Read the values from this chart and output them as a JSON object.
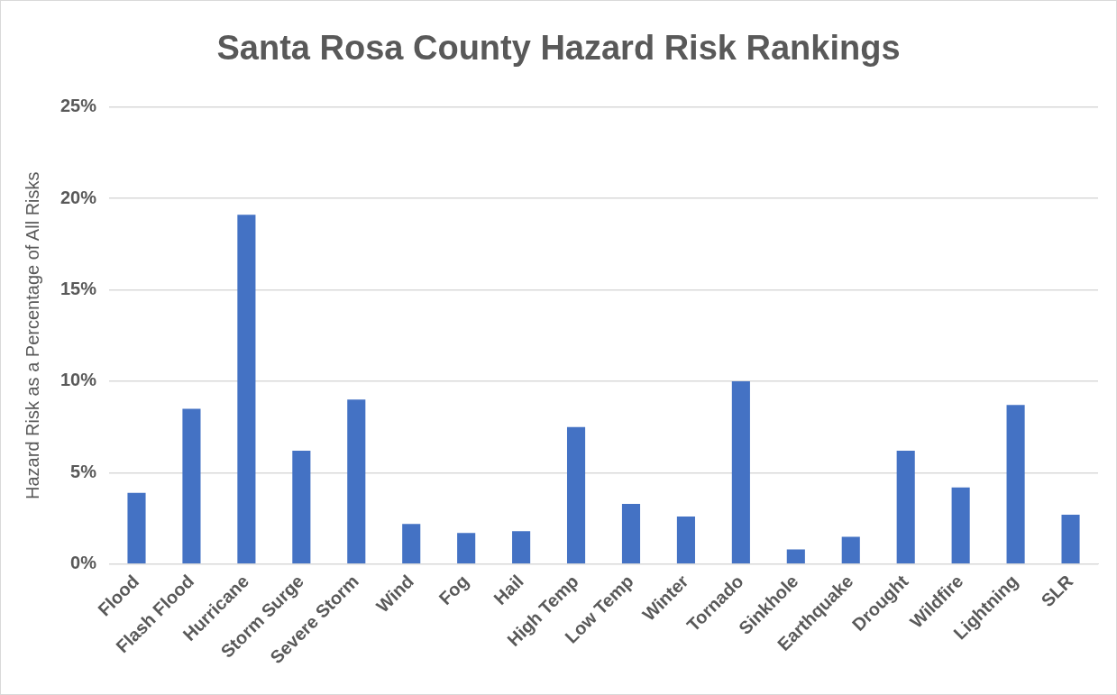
{
  "chart_data": {
    "type": "bar",
    "title": "Santa Rosa County Hazard Risk Rankings",
    "ylabel": "Hazard Risk as a Percentage of All Risks",
    "categories": [
      "Flood",
      "Flash Flood",
      "Hurricane",
      "Storm Surge",
      "Severe Storm",
      "Wind",
      "Fog",
      "Hail",
      "High Temp",
      "Low Temp",
      "Winter",
      "Tornado",
      "Sinkhole",
      "Earthquake",
      "Drought",
      "Wildfire",
      "Lightning",
      "SLR"
    ],
    "values": [
      3.9,
      8.5,
      19.1,
      6.2,
      9.0,
      2.2,
      1.7,
      1.8,
      7.5,
      3.3,
      2.6,
      10.0,
      0.8,
      1.5,
      6.2,
      4.2,
      8.7,
      2.7
    ],
    "color": "#4472c4",
    "ylim": [
      0,
      25
    ],
    "yticks": [
      {
        "value": 0,
        "label": "0%"
      },
      {
        "value": 5,
        "label": "5%"
      },
      {
        "value": 10,
        "label": "10%"
      },
      {
        "value": 15,
        "label": "15%"
      },
      {
        "value": 20,
        "label": "20%"
      },
      {
        "value": 25,
        "label": "25%"
      }
    ],
    "grid": "y"
  }
}
